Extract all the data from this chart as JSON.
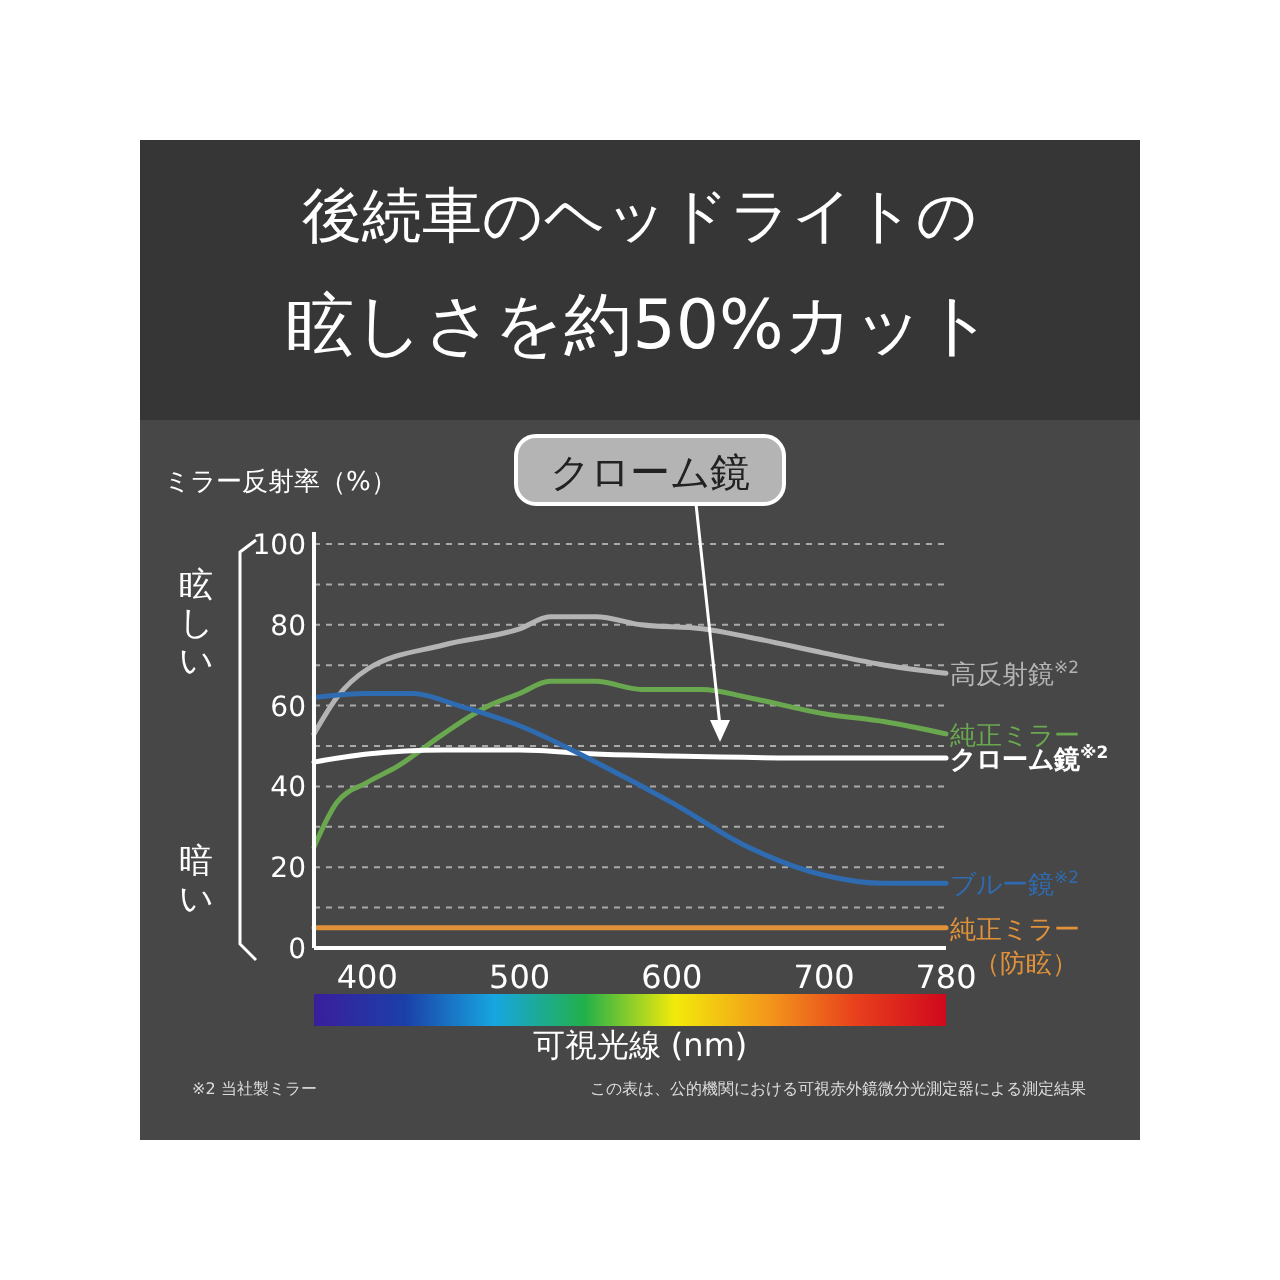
{
  "chart_data": {
    "type": "line",
    "title": "後続車のヘッドライトの眩しさを約50%カット",
    "ylabel": "ミラー反射率（%）",
    "xlabel": "可視光線 (nm)",
    "xlim": [
      365,
      780
    ],
    "xticks": [
      400,
      500,
      600,
      700,
      780
    ],
    "ylim": [
      0,
      100
    ],
    "yticks": [
      0,
      {
        "value": 10,
        "label": null
      },
      20,
      {
        "value": 30,
        "label": null
      },
      40,
      {
        "value": 50,
        "label": null
      },
      60,
      {
        "value": 70,
        "label": null
      },
      80,
      {
        "value": 90,
        "label": null
      },
      100
    ],
    "grid": "y",
    "legend": false,
    "marker": "none",
    "line_style": "solid",
    "series": [
      {
        "name": "高反射鏡$^{※2}$",
        "color": "#b4b4b4",
        "x": [
          365,
          380,
          400,
          450,
          500,
          520,
          550,
          580,
          620,
          650,
          700,
          740,
          780
        ],
        "values": [
          53,
          62,
          69,
          75,
          79,
          82,
          82,
          80,
          79,
          77,
          73,
          70,
          68
        ]
      },
      {
        "name": "純正ミラー",
        "color": "#6aa84f",
        "x": [
          365,
          380,
          400,
          420,
          450,
          480,
          500,
          520,
          550,
          580,
          620,
          650,
          700,
          740,
          780
        ],
        "values": [
          25,
          36,
          41,
          45,
          53,
          60,
          63,
          66,
          66,
          64,
          64,
          62,
          58,
          56,
          53
        ]
      },
      {
        "name": "クローム鏡$^{※2}$",
        "color": "#ffffff",
        "x": [
          365,
          400,
          450,
          500,
          550,
          600,
          700,
          780
        ],
        "values": [
          46,
          48,
          49,
          49,
          48,
          47.5,
          47,
          47
        ]
      },
      {
        "name": "ブルー鏡$^{※2}$",
        "color": "#2f6bb0",
        "x": [
          365,
          400,
          430,
          460,
          500,
          550,
          600,
          650,
          700,
          740,
          780
        ],
        "values": [
          62,
          63,
          63,
          60,
          55,
          46,
          36,
          25,
          18,
          16,
          16
        ]
      },
      {
        "name": "純正ミラー（防眩）",
        "color": "#e0913a",
        "x": [
          365,
          780
        ],
        "values": [
          5,
          5
        ]
      }
    ],
    "annotations": [
      "クローム鏡",
      "眩しい",
      "暗い",
      "※2 当社製ミラー",
      "この表は、公的機関における可視赤外鏡微分光測定器による測定結果"
    ]
  }
}
